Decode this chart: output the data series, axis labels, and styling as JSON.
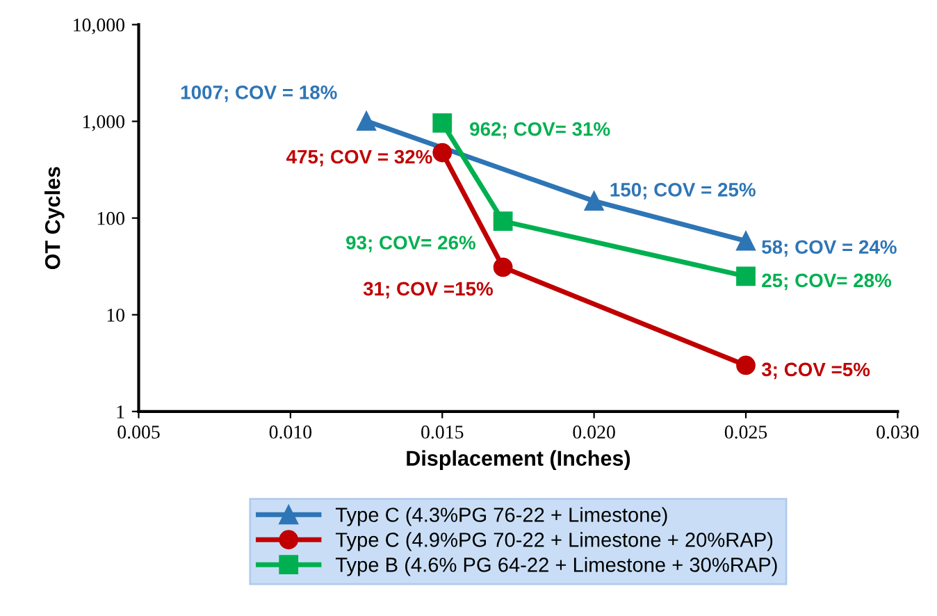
{
  "chart_data": {
    "type": "line",
    "xlabel": "Displacement (Inches)",
    "ylabel": "OT Cycles",
    "log": "y",
    "xlim": [
      0.005,
      0.03
    ],
    "xticks": [
      {
        "value": 0.005,
        "label": "0.005"
      },
      {
        "value": 0.01,
        "label": "0.010"
      },
      {
        "value": 0.015,
        "label": "0.015"
      },
      {
        "value": 0.02,
        "label": "0.020"
      },
      {
        "value": 0.025,
        "label": "0.025"
      },
      {
        "value": 0.03,
        "label": "0.030"
      }
    ],
    "ylim": [
      1,
      10000
    ],
    "yticks": [
      1,
      10,
      100,
      {
        "value": 1000,
        "label": "1,000"
      },
      {
        "value": 10000,
        "label": "10,000"
      }
    ],
    "grid": false,
    "legend": "bottom",
    "line_style": "solid",
    "series": [
      {
        "name": "Type C (4.3%PG 76-22 + Limestone)",
        "color": "#2e75b6",
        "marker": "triangle",
        "x": [
          0.0125,
          0.02,
          0.025
        ],
        "values": [
          1007,
          150,
          58
        ],
        "value_labels": [
          "1007; COV = 18%",
          "150; COV = 25%",
          "58; COV = 24%"
        ]
      },
      {
        "name": "Type C (4.9%PG 70-22 + Limestone + 20%RAP)",
        "color": "#c00000",
        "marker": "circle",
        "x": [
          0.015,
          0.017,
          0.025
        ],
        "values": [
          475,
          31,
          3
        ],
        "value_labels": [
          "475; COV = 32%",
          "31; COV =15%",
          "3; COV =5%"
        ]
      },
      {
        "name": "Type B (4.6% PG 64-22 + Limestone + 30%RAP)",
        "color": "#00b050",
        "marker": "square",
        "x": [
          0.015,
          0.017,
          0.025
        ],
        "values": [
          962,
          93,
          25
        ],
        "value_labels": [
          "962; COV= 31%",
          "93; COV= 26%",
          "25; COV= 28%"
        ]
      }
    ]
  }
}
